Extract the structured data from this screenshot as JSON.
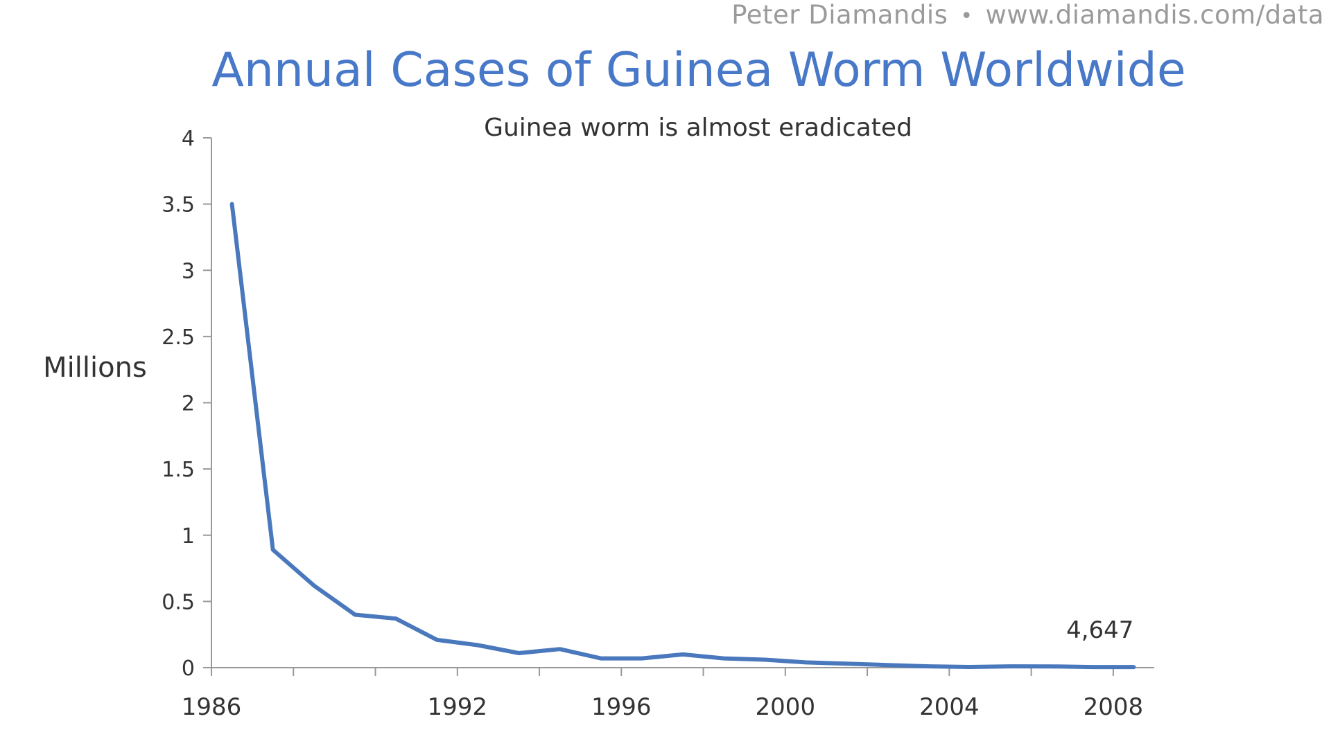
{
  "header": {
    "author": "Peter Diamandis",
    "separator": "•",
    "website": "www.diamandis.com/data"
  },
  "colors": {
    "title": "#4878c8",
    "line": "#4a78bd",
    "credit": "#9a9a9a",
    "axis": "#999999",
    "text": "#333333"
  },
  "chart_data": {
    "type": "line",
    "title": "Annual Cases of Guinea Worm Worldwide",
    "subtitle": "Guinea worm is almost eradicated",
    "ylabel": "Millions",
    "xlabel": "",
    "ylim": [
      0,
      4
    ],
    "xlim": [
      1986,
      2009
    ],
    "grid": false,
    "y_ticks": [
      {
        "value": 0,
        "label": "0"
      },
      {
        "value": 0.5,
        "label": "0.5"
      },
      {
        "value": 1,
        "label": "1"
      },
      {
        "value": 1.5,
        "label": "1.5"
      },
      {
        "value": 2,
        "label": "2"
      },
      {
        "value": 2.5,
        "label": "2.5"
      },
      {
        "value": 3,
        "label": "3"
      },
      {
        "value": 3.5,
        "label": "3.5"
      },
      {
        "value": 4,
        "label": "4"
      }
    ],
    "x_tick_positions": [
      1986,
      1988,
      1990,
      1992,
      1994,
      1996,
      1998,
      2000,
      2002,
      2004,
      2006,
      2008
    ],
    "x_tick_labels": [
      {
        "value": 1986,
        "label": "1986"
      },
      {
        "value": 1992,
        "label": "1992"
      },
      {
        "value": 1996,
        "label": "1996"
      },
      {
        "value": 2000,
        "label": "2000"
      },
      {
        "value": 2004,
        "label": "2004"
      },
      {
        "value": 2008,
        "label": "2008"
      }
    ],
    "series": [
      {
        "x": [
          1986.5,
          1987.5,
          1988.5,
          1989.5,
          1990.5,
          1991.5,
          1992.5,
          1993.5,
          1994.5,
          1995.5,
          1996.5,
          1997.5,
          1998.5,
          1999.5,
          2000.5,
          2001.5,
          2002.5,
          2003.5,
          2004.5,
          2005.5,
          2006.5,
          2007.5,
          2008.5
        ],
        "values": [
          3.5,
          0.89,
          0.62,
          0.4,
          0.37,
          0.21,
          0.17,
          0.11,
          0.14,
          0.07,
          0.07,
          0.1,
          0.07,
          0.06,
          0.04,
          0.03,
          0.02,
          0.01,
          0.005,
          0.01,
          0.0093,
          0.0046,
          0.0046
        ]
      }
    ],
    "annotations": [
      {
        "x": 2008.5,
        "y": 0.0046,
        "text": "4,647"
      }
    ]
  }
}
